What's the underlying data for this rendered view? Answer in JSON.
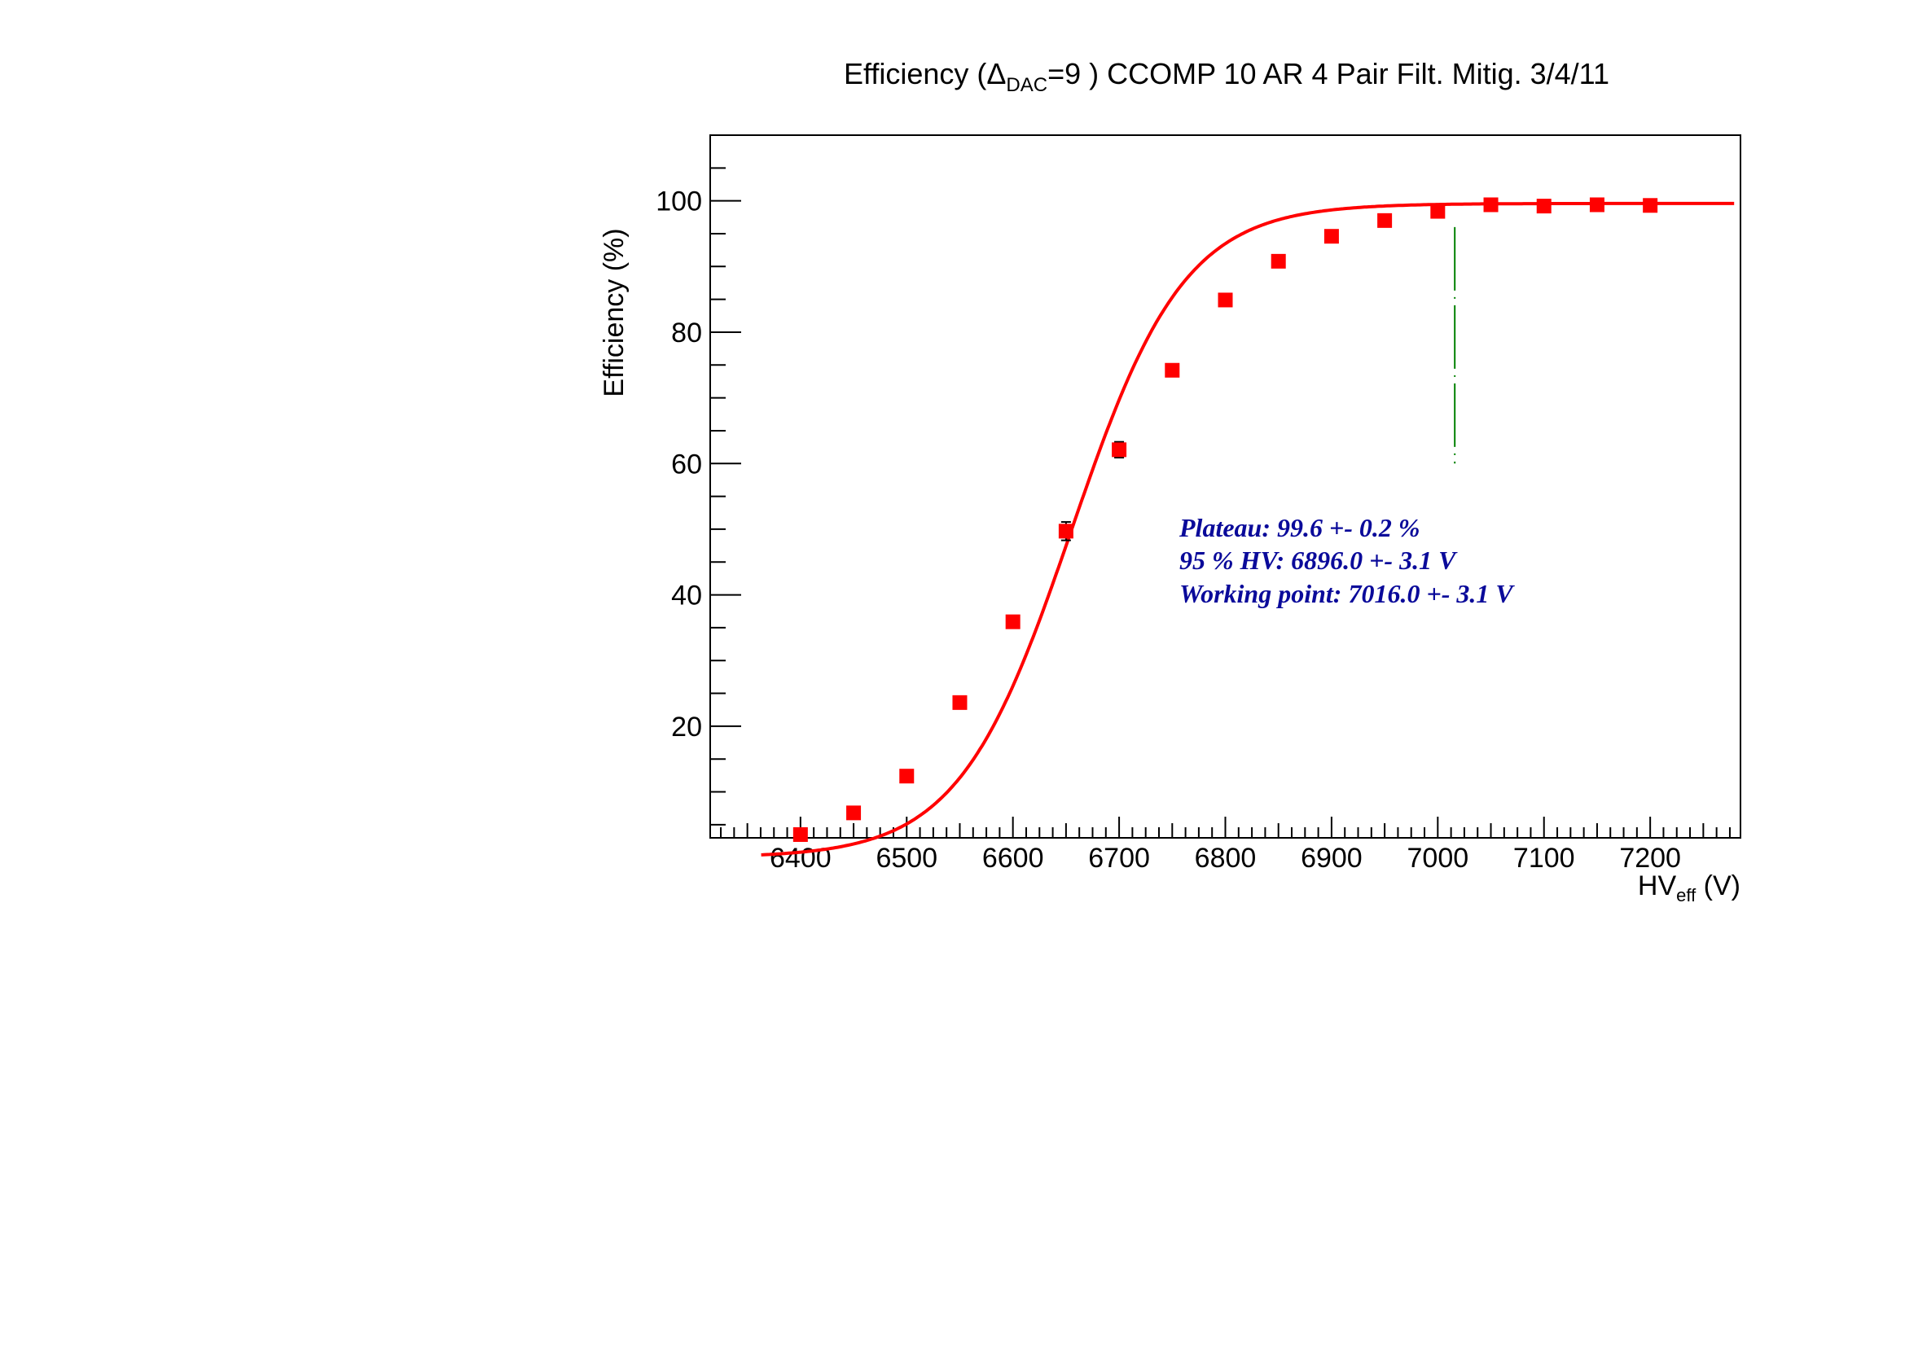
{
  "chart_data": {
    "type": "scatter",
    "title": {
      "pre": "Efficiency (",
      "delta": "Δ",
      "delta_sub": "DAC",
      "post": "=9 ) CCOMP 10 AR 4 Pair Filt. Mitig. 3/4/11"
    },
    "xlabel": {
      "main": "HV",
      "sub": "eff",
      "unit": " (V)"
    },
    "ylabel": "Efficiency (%)",
    "xlim": [
      6315,
      7285
    ],
    "ylim": [
      3,
      110
    ],
    "x_ticks": [
      6400,
      6500,
      6600,
      6700,
      6800,
      6900,
      7000,
      7100,
      7200
    ],
    "y_ticks": [
      20,
      40,
      60,
      80,
      100
    ],
    "series": [
      {
        "color": "#ff0000",
        "points": [
          {
            "x": 6400,
            "y": 3.5,
            "err": 0.4
          },
          {
            "x": 6450,
            "y": 6.8,
            "err": 0.5
          },
          {
            "x": 6500,
            "y": 12.4,
            "err": 0.6
          },
          {
            "x": 6550,
            "y": 23.6,
            "err": 0.6
          },
          {
            "x": 6600,
            "y": 35.9,
            "err": 0.9
          },
          {
            "x": 6650,
            "y": 49.7,
            "err": 1.4
          },
          {
            "x": 6700,
            "y": 62.1,
            "err": 1.2
          },
          {
            "x": 6750,
            "y": 74.2,
            "err": 0.6
          },
          {
            "x": 6800,
            "y": 84.9,
            "err": 0.5
          },
          {
            "x": 6850,
            "y": 90.8,
            "err": 0.4
          },
          {
            "x": 6900,
            "y": 94.6,
            "err": 0.3
          },
          {
            "x": 6950,
            "y": 97.0,
            "err": 0.3
          },
          {
            "x": 7000,
            "y": 98.4,
            "err": 0.3
          },
          {
            "x": 7050,
            "y": 99.4,
            "err": 0.3
          },
          {
            "x": 7100,
            "y": 99.2,
            "err": 0.3
          },
          {
            "x": 7150,
            "y": 99.4,
            "err": 0.3
          },
          {
            "x": 7200,
            "y": 99.3,
            "err": 0.3
          }
        ]
      }
    ],
    "fit": {
      "type": "sigmoid",
      "color": "#ff0000",
      "plateau": 99.6,
      "x50": 6655,
      "slope": 0.0188,
      "x_range": [
        6363,
        7280
      ]
    },
    "working_point_line": {
      "x": 7016,
      "y_range": [
        60,
        96
      ],
      "color": "#008000",
      "style": "dashed"
    },
    "grid": false,
    "legend": "none",
    "annotations": {
      "color": "#0a0a9a",
      "lines": [
        "Plateau: 99.6 +- 0.2 %",
        "95 % HV: 6896.0 +- 3.1 V",
        "Working point: 7016.0 +- 3.1 V"
      ]
    }
  }
}
